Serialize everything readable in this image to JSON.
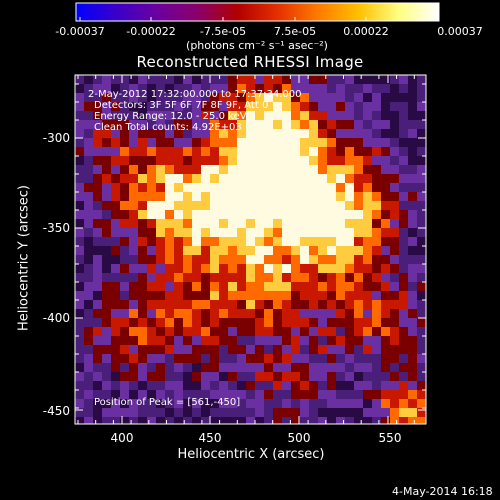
{
  "colorbar": {
    "tick_labels": [
      "-0.00037",
      "-0.00022",
      "-7.5e-05",
      "7.5e-05",
      "0.00022",
      "0.00037"
    ],
    "units_label": "(photons cm⁻² s⁻¹ asec⁻²)",
    "colors": [
      "#0000ff",
      "#3b00c8",
      "#6a00a0",
      "#8a006a",
      "#b00000",
      "#e43000",
      "#ff7a00",
      "#ffbf00",
      "#ffff80",
      "#ffffff"
    ]
  },
  "title": "Reconstructed RHESSI Image",
  "annotations": {
    "time_range": "2-May-2012 17:32:00.000 to 17:37:34.000",
    "detectors": "Detectors: 3F 5F 6F 7F 8F 9F, Att 0",
    "energy": "Energy Range: 12.0 - 25.0 keV",
    "algo": "Clean      Total counts: 4.92E+03",
    "peak": "Position of Peak = [561,-450]"
  },
  "axes": {
    "xlabel": "Heliocentric X (arcsec)",
    "ylabel": "Heliocentric Y (arcsec)",
    "xticks": [
      "400",
      "450",
      "500",
      "550"
    ],
    "yticks": [
      "-300",
      "-350",
      "-400",
      "-450"
    ]
  },
  "timestamp": "4-May-2014 16:18",
  "image_colors": {
    "dark_purple": "#2a0a45",
    "purple": "#4a1f7a",
    "violet": "#6a2fa0",
    "dark_red": "#7a0000",
    "red": "#c81800",
    "orange": "#ff6a00",
    "yellow": "#ffcc40",
    "white": "#fffbe0"
  }
}
